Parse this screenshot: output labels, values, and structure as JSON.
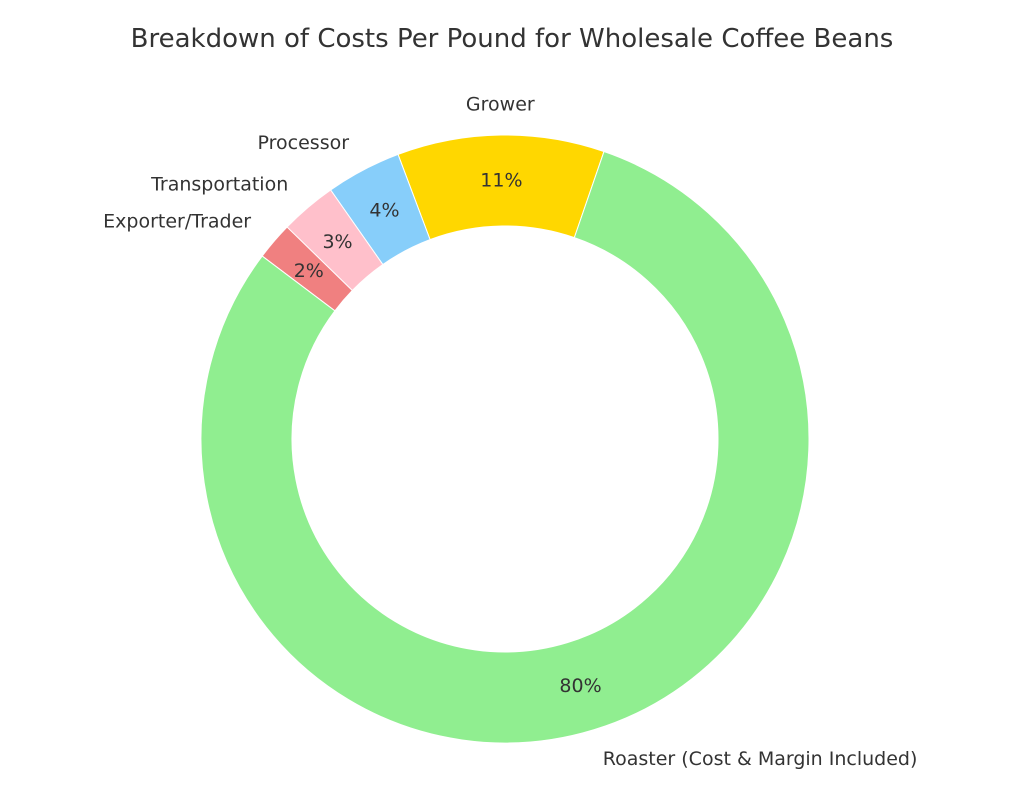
{
  "chart_data": {
    "type": "pie",
    "donut": true,
    "title": "Breakdown of Costs Per Pound for Wholesale Coffee Beans",
    "unit": "%",
    "slices": [
      {
        "label": "Grower",
        "value": 11,
        "pct_label": "11%",
        "color": "#FFD700"
      },
      {
        "label": "Processor",
        "value": 4,
        "pct_label": "4%",
        "color": "#87CEFA"
      },
      {
        "label": "Transportation",
        "value": 3,
        "pct_label": "3%",
        "color": "#FFC0CB"
      },
      {
        "label": "Exporter/Trader",
        "value": 2,
        "pct_label": "2%",
        "color": "#F08080"
      },
      {
        "label": "Roaster (Cost & Margin Included)",
        "value": 80,
        "pct_label": "80%",
        "color": "#90EE90"
      }
    ],
    "legend": "none"
  }
}
